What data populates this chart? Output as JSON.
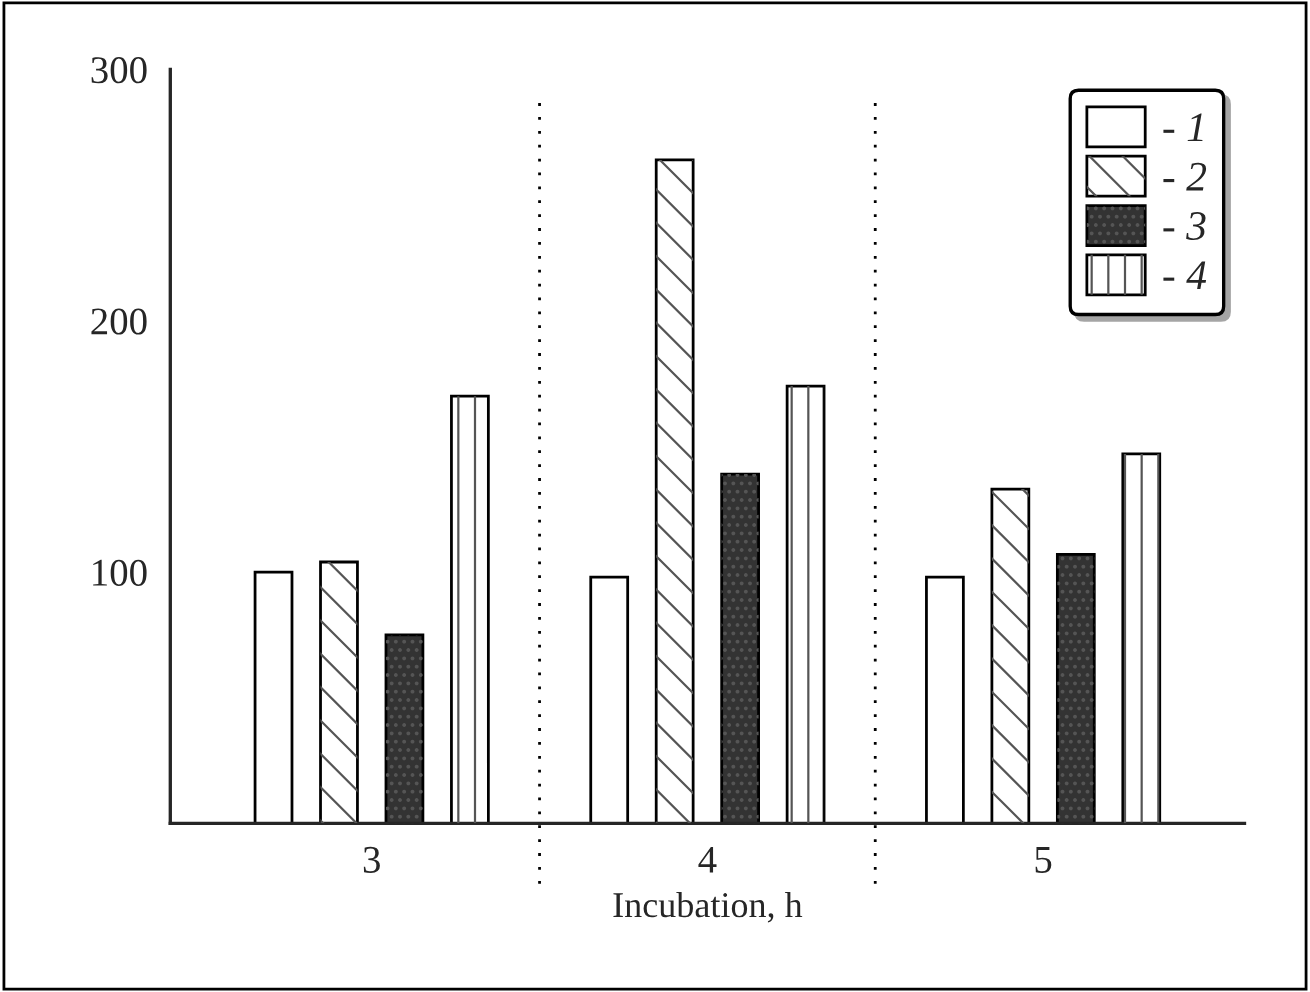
{
  "chart_data": {
    "type": "bar",
    "xlabel": "Incubation, h",
    "categories": [
      "3",
      "4",
      "5"
    ],
    "series": [
      {
        "name": "- 1",
        "color": "#ffffff",
        "values": [
          100,
          98,
          98
        ]
      },
      {
        "name": "- 2",
        "color": "#ffffff",
        "values": [
          104,
          264,
          133
        ]
      },
      {
        "name": "- 3",
        "color": "#333333",
        "values": [
          75,
          139,
          107
        ]
      },
      {
        "name": "- 4",
        "color": "#ffffff",
        "values": [
          170,
          174,
          147
        ]
      }
    ],
    "ylim": [
      0,
      300
    ],
    "yticks": [
      100,
      200,
      300
    ],
    "grid": false,
    "legend": "top right"
  }
}
